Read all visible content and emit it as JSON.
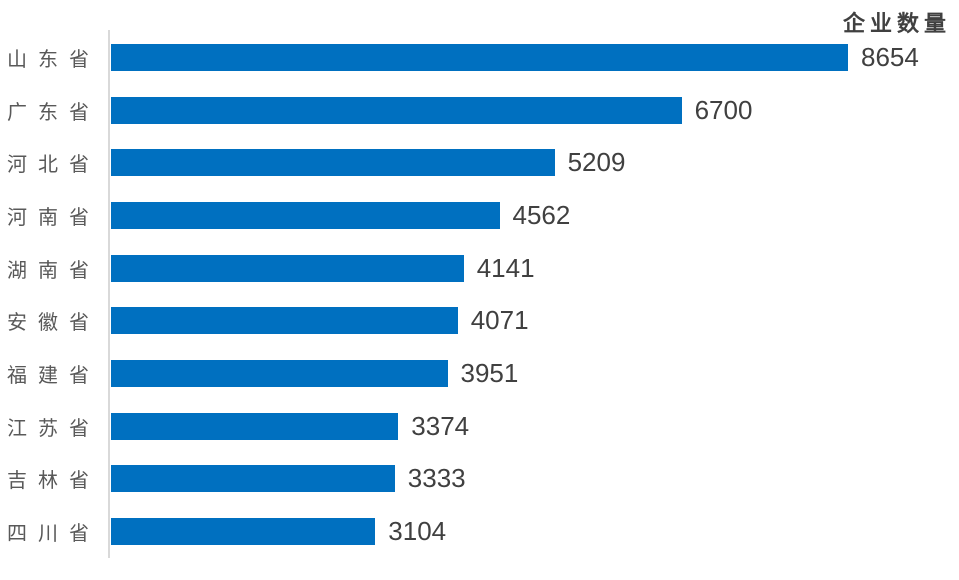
{
  "chart_data": {
    "type": "bar",
    "orientation": "horizontal",
    "title": "企业数量",
    "categories": [
      "山东省",
      "广东省",
      "河北省",
      "河南省",
      "湖南省",
      "安徽省",
      "福建省",
      "江苏省",
      "吉林省",
      "四川省"
    ],
    "values": [
      8654,
      6700,
      5209,
      4562,
      4141,
      4071,
      3951,
      3374,
      3333,
      3104
    ],
    "xlabel": "",
    "ylabel": "",
    "xlim": [
      0,
      8654
    ],
    "grid": false,
    "legend": "none",
    "value_labels": "end-of-bar",
    "bar_color": "#0070C0",
    "axis_line_color": "#d9d9d9",
    "category_label_color": "#595959",
    "value_label_color": "#404040",
    "title_color": "#404040"
  }
}
